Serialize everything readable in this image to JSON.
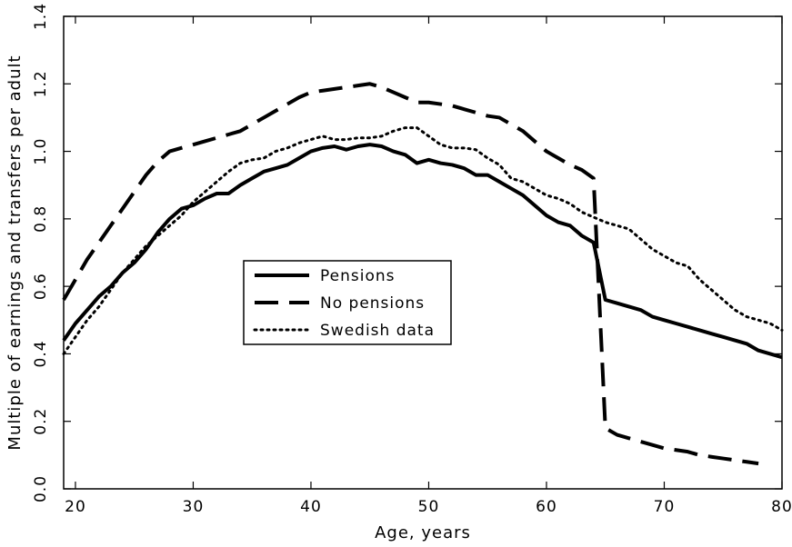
{
  "chart_data": {
    "type": "line",
    "xlabel": "Age, years",
    "ylabel": "Multiple of earnings and transfers per adult",
    "xlim": [
      19,
      80
    ],
    "xticks": [
      20,
      30,
      40,
      50,
      60,
      70,
      80
    ],
    "ylim": [
      0,
      1.4
    ],
    "yticks": [
      {
        "value": 0,
        "label": "0.0"
      },
      0.2,
      0.4,
      0.6,
      0.8,
      {
        "value": 1,
        "label": "1.0"
      },
      1.2,
      1.4
    ],
    "legend": "center",
    "series": [
      {
        "name": "Pensions",
        "color": "#000000",
        "style": "solid",
        "x": [
          19,
          20,
          21,
          22,
          23,
          24,
          25,
          26,
          27,
          28,
          29,
          30,
          31,
          32,
          33,
          34,
          35,
          36,
          37,
          38,
          39,
          40,
          41,
          42,
          43,
          44,
          45,
          46,
          47,
          48,
          49,
          50,
          51,
          52,
          53,
          54,
          55,
          56,
          57,
          58,
          59,
          60,
          61,
          62,
          63,
          64,
          65,
          66,
          67,
          68,
          69,
          70,
          71,
          72,
          73,
          74,
          75,
          76,
          77,
          78,
          79,
          80
        ],
        "values": [
          0.44,
          0.49,
          0.53,
          0.57,
          0.6,
          0.64,
          0.67,
          0.71,
          0.76,
          0.8,
          0.83,
          0.84,
          0.86,
          0.875,
          0.875,
          0.9,
          0.92,
          0.94,
          0.95,
          0.96,
          0.98,
          1.0,
          1.01,
          1.015,
          1.005,
          1.015,
          1.02,
          1.015,
          1.0,
          0.99,
          0.965,
          0.975,
          0.965,
          0.96,
          0.95,
          0.93,
          0.93,
          0.91,
          0.89,
          0.87,
          0.84,
          0.81,
          0.79,
          0.78,
          0.75,
          0.73,
          0.56,
          0.55,
          0.54,
          0.53,
          0.51,
          0.5,
          0.49,
          0.48,
          0.47,
          0.46,
          0.45,
          0.44,
          0.43,
          0.41,
          0.4,
          0.39
        ]
      },
      {
        "name": "No pensions",
        "color": "#000000",
        "style": "dashed",
        "x": [
          19,
          20,
          21,
          22,
          23,
          24,
          25,
          26,
          27,
          28,
          29,
          30,
          31,
          32,
          33,
          34,
          35,
          36,
          37,
          38,
          39,
          40,
          41,
          42,
          43,
          44,
          45,
          46,
          47,
          48,
          49,
          50,
          51,
          52,
          53,
          54,
          55,
          56,
          57,
          58,
          59,
          60,
          61,
          62,
          63,
          64,
          65,
          66,
          67,
          68,
          69,
          70,
          71,
          72,
          73,
          74,
          75,
          76,
          77,
          78
        ],
        "values": [
          0.56,
          0.62,
          0.68,
          0.73,
          0.78,
          0.83,
          0.88,
          0.93,
          0.97,
          1.0,
          1.01,
          1.02,
          1.03,
          1.04,
          1.05,
          1.06,
          1.08,
          1.1,
          1.12,
          1.14,
          1.16,
          1.175,
          1.18,
          1.185,
          1.19,
          1.195,
          1.2,
          1.19,
          1.175,
          1.16,
          1.145,
          1.145,
          1.14,
          1.135,
          1.125,
          1.115,
          1.105,
          1.1,
          1.08,
          1.06,
          1.03,
          1.0,
          0.98,
          0.96,
          0.945,
          0.92,
          0.18,
          0.16,
          0.15,
          0.14,
          0.13,
          0.12,
          0.115,
          0.11,
          0.1,
          0.095,
          0.09,
          0.085,
          0.08,
          0.075
        ]
      },
      {
        "name": "Swedish data",
        "color": "#000000",
        "style": "dotted",
        "x": [
          19,
          20,
          21,
          22,
          23,
          24,
          25,
          26,
          27,
          28,
          29,
          30,
          31,
          32,
          33,
          34,
          35,
          36,
          37,
          38,
          39,
          40,
          41,
          42,
          43,
          44,
          45,
          46,
          47,
          48,
          49,
          50,
          51,
          52,
          53,
          54,
          55,
          56,
          57,
          58,
          59,
          60,
          61,
          62,
          63,
          64,
          65,
          66,
          67,
          68,
          69,
          70,
          71,
          72,
          73,
          74,
          75,
          76,
          77,
          78,
          79,
          80
        ],
        "values": [
          0.4,
          0.45,
          0.5,
          0.54,
          0.59,
          0.64,
          0.68,
          0.72,
          0.75,
          0.78,
          0.81,
          0.85,
          0.88,
          0.91,
          0.94,
          0.965,
          0.975,
          0.98,
          1.0,
          1.01,
          1.025,
          1.035,
          1.045,
          1.035,
          1.035,
          1.04,
          1.04,
          1.045,
          1.06,
          1.07,
          1.07,
          1.045,
          1.02,
          1.01,
          1.01,
          1.005,
          0.98,
          0.96,
          0.92,
          0.91,
          0.89,
          0.87,
          0.86,
          0.845,
          0.82,
          0.805,
          0.79,
          0.78,
          0.77,
          0.74,
          0.71,
          0.69,
          0.67,
          0.66,
          0.62,
          0.59,
          0.56,
          0.53,
          0.51,
          0.5,
          0.49,
          0.47
        ]
      }
    ]
  }
}
